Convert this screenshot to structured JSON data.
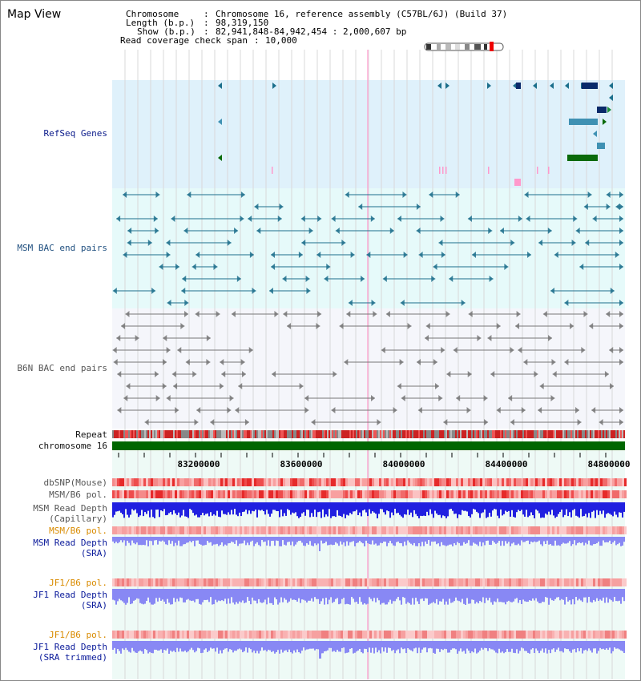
{
  "page_title": "Map View",
  "info": {
    "chromosome_key": "Chromosome",
    "chromosome_value": "Chromosome 16, reference assembly (C57BL/6J) (Build 37)",
    "length_key": "Length (b.p.)",
    "length_value": "98,319,150",
    "show_key": "Show (b.p.)",
    "show_value": "82,941,848-84,942,454 : 2,000,607 bp",
    "coverage_key": "Read coverage check span",
    "coverage_value": "10,000"
  },
  "tracks": {
    "refseq": "RefSeq Genes",
    "msm_bac": "MSM BAC end pairs",
    "b6n_bac": "B6N BAC end pairs",
    "repeat": "Repeat",
    "chromosome": "chromosome 16",
    "dbsnp": "dbSNP(Mouse)",
    "msm_b6_pol": "MSM/B6 pol.",
    "msm_depth_cap_1": "MSM Read Depth",
    "msm_depth_cap_2": "(Capillary)",
    "msm_b6_pol_sra": "MSM/B6 pol.",
    "msm_depth_sra_1": "MSM Read Depth",
    "msm_depth_sra_2": "(SRA)",
    "jf1_b6_pol": "JF1/B6 pol.",
    "jf1_depth_1": "JF1 Read Depth",
    "jf1_depth_2": "(SRA)",
    "jf1_b6_pol_trim": "JF1/B6 pol.",
    "jf1_depth_trim_1": "JF1 Read Depth",
    "jf1_depth_trim_2": "(SRA trimmed)"
  },
  "axis": {
    "start": 82941848,
    "end": 84942454,
    "ticks": [
      "83200000",
      "83600000",
      "84000000",
      "84400000",
      "84800000"
    ]
  },
  "colors": {
    "refseq_bg": "#dff1fb",
    "msm_bg": "#e6fafa",
    "b6n_bg": "#f5f6fb",
    "lower_bg": "#eefaf6",
    "chromosome": "#006600",
    "msm_feature": "#1c6f8c",
    "b6n_feature": "#777777",
    "depth_capillary": "#2020e0",
    "depth_sra": "#8888f4",
    "highlight": "#ff99cc"
  }
}
